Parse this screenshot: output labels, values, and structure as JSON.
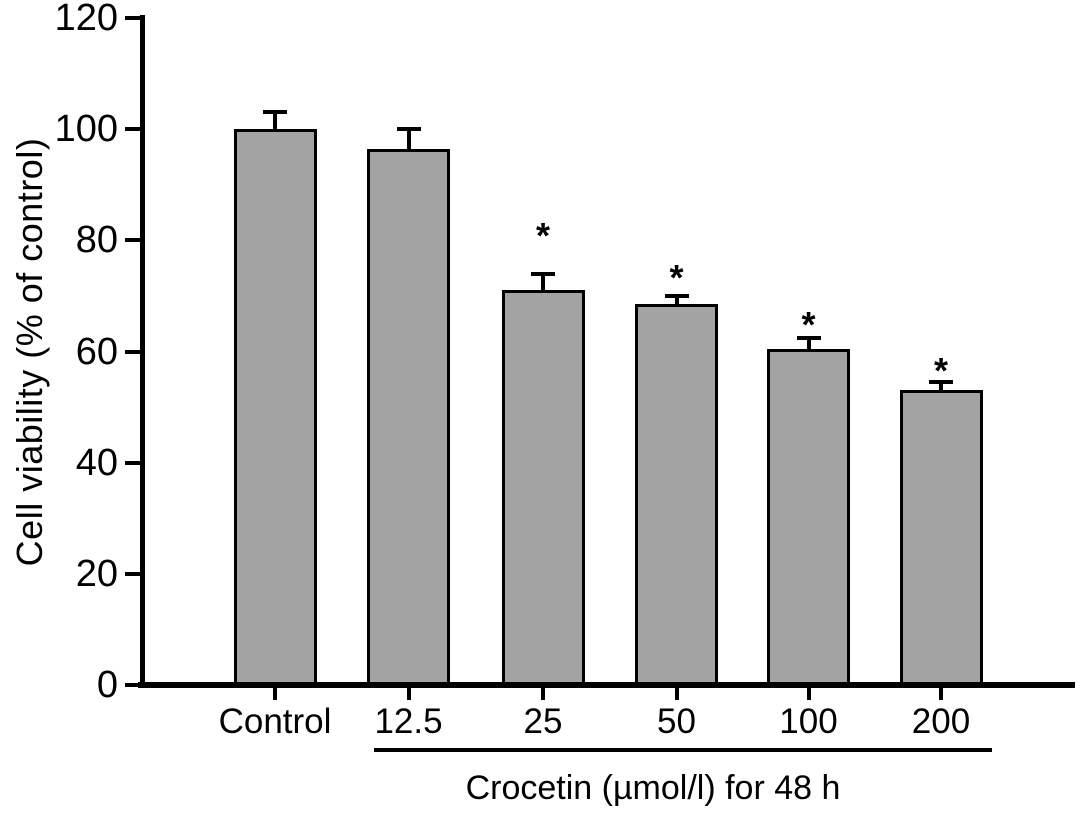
{
  "figure": {
    "background": "#ffffff",
    "bar_fill": "#a3a3a3",
    "bar_border": "#000000",
    "axis_color": "#000000",
    "text_color": "#000000"
  },
  "chart_data": {
    "type": "bar",
    "title": "",
    "xlabel": "",
    "ylabel": "Cell viability (% of control)",
    "categories": [
      "Control",
      "12.5",
      "25",
      "50",
      "100",
      "200"
    ],
    "values": [
      100,
      96.5,
      71,
      68.5,
      60.5,
      53
    ],
    "errors": [
      3,
      3.5,
      3,
      1.5,
      2,
      1.5
    ],
    "significance": [
      "",
      "",
      "*",
      "*",
      "*",
      "*"
    ],
    "ylim": [
      0,
      120
    ],
    "yticks": [
      0,
      20,
      40,
      60,
      80,
      100,
      120
    ],
    "grid": false,
    "legend": null,
    "error_bars": "upper half, capped",
    "group_bracket": {
      "label": "Crocetin (µmol/l) for 48 h",
      "from_category": "12.5",
      "to_category": "200"
    }
  }
}
